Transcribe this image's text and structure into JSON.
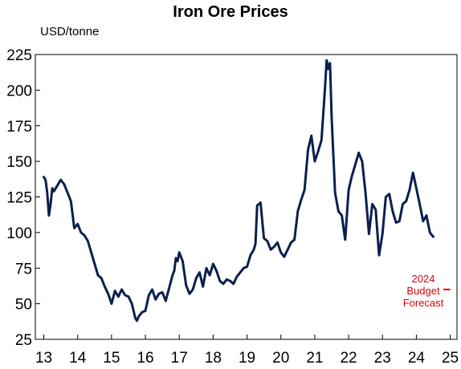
{
  "chart_data": {
    "type": "line",
    "title": "Iron Ore Prices",
    "ylabel": "USD/tonne",
    "xlabel": "",
    "ylim": [
      25,
      225
    ],
    "xlim": [
      2012.75,
      2025.2
    ],
    "yticks": [
      25,
      50,
      75,
      100,
      125,
      150,
      175,
      200,
      225
    ],
    "xticks": [
      "13",
      "14",
      "15",
      "16",
      "17",
      "18",
      "19",
      "20",
      "21",
      "22",
      "23",
      "24",
      "25"
    ],
    "grid": false,
    "legend": "none",
    "line_color": "#0b1f4f",
    "forecast_color": "#e00000",
    "series": [
      {
        "x": [
          2013.0,
          2013.05,
          2013.1,
          2013.15,
          2013.2,
          2013.25,
          2013.3,
          2013.4,
          2013.5,
          2013.6,
          2013.7,
          2013.8,
          2013.9,
          2014.0,
          2014.1,
          2014.2,
          2014.3,
          2014.4,
          2014.5,
          2014.6,
          2014.7,
          2014.8,
          2014.9,
          2015.0,
          2015.1,
          2015.2,
          2015.3,
          2015.4,
          2015.5,
          2015.6,
          2015.7,
          2015.75,
          2015.8,
          2015.9,
          2016.0,
          2016.1,
          2016.2,
          2016.3,
          2016.4,
          2016.5,
          2016.6,
          2016.7,
          2016.8,
          2016.85,
          2016.9,
          2016.95,
          2017.0,
          2017.1,
          2017.2,
          2017.3,
          2017.4,
          2017.5,
          2017.6,
          2017.7,
          2017.8,
          2017.9,
          2018.0,
          2018.1,
          2018.2,
          2018.3,
          2018.4,
          2018.5,
          2018.6,
          2018.7,
          2018.8,
          2018.9,
          2019.0,
          2019.1,
          2019.2,
          2019.25,
          2019.3,
          2019.4,
          2019.5,
          2019.6,
          2019.7,
          2019.8,
          2019.9,
          2020.0,
          2020.1,
          2020.2,
          2020.3,
          2020.4,
          2020.5,
          2020.6,
          2020.7,
          2020.8,
          2020.9,
          2021.0,
          2021.1,
          2021.2,
          2021.3,
          2021.35,
          2021.4,
          2021.45,
          2021.5,
          2021.6,
          2021.7,
          2021.8,
          2021.9,
          2022.0,
          2022.1,
          2022.2,
          2022.3,
          2022.4,
          2022.5,
          2022.6,
          2022.7,
          2022.8,
          2022.9,
          2023.0,
          2023.1,
          2023.2,
          2023.3,
          2023.4,
          2023.5,
          2023.6,
          2023.7,
          2023.8,
          2023.9,
          2024.0,
          2024.1,
          2024.2,
          2024.3,
          2024.4,
          2024.5
        ],
        "y": [
          139,
          137,
          128,
          112,
          120,
          131,
          129,
          133,
          137,
          134,
          128,
          122,
          103,
          106,
          100,
          98,
          94,
          86,
          78,
          70,
          68,
          62,
          57,
          50,
          59,
          55,
          60,
          56,
          55,
          50,
          40,
          38,
          41,
          44,
          45,
          56,
          60,
          53,
          57,
          58,
          52,
          61,
          70,
          73,
          82,
          80,
          86,
          80,
          63,
          57,
          60,
          68,
          72,
          62,
          75,
          70,
          78,
          73,
          66,
          64,
          67,
          66,
          64,
          69,
          72,
          75,
          76,
          84,
          88,
          92,
          119,
          121,
          96,
          94,
          88,
          90,
          93,
          86,
          83,
          88,
          93,
          95,
          115,
          123,
          130,
          158,
          168,
          150,
          157,
          165,
          200,
          221,
          215,
          219,
          180,
          128,
          115,
          112,
          95,
          130,
          140,
          148,
          156,
          150,
          128,
          99,
          120,
          116,
          84,
          99,
          125,
          127,
          115,
          107,
          108,
          120,
          122,
          130,
          142,
          131,
          120,
          108,
          112,
          100,
          97
        ]
      }
    ],
    "forecast": {
      "label": "2024 Budget Forecast",
      "value": 60,
      "x_from": 2024.8,
      "x_to": 2025.0
    }
  }
}
